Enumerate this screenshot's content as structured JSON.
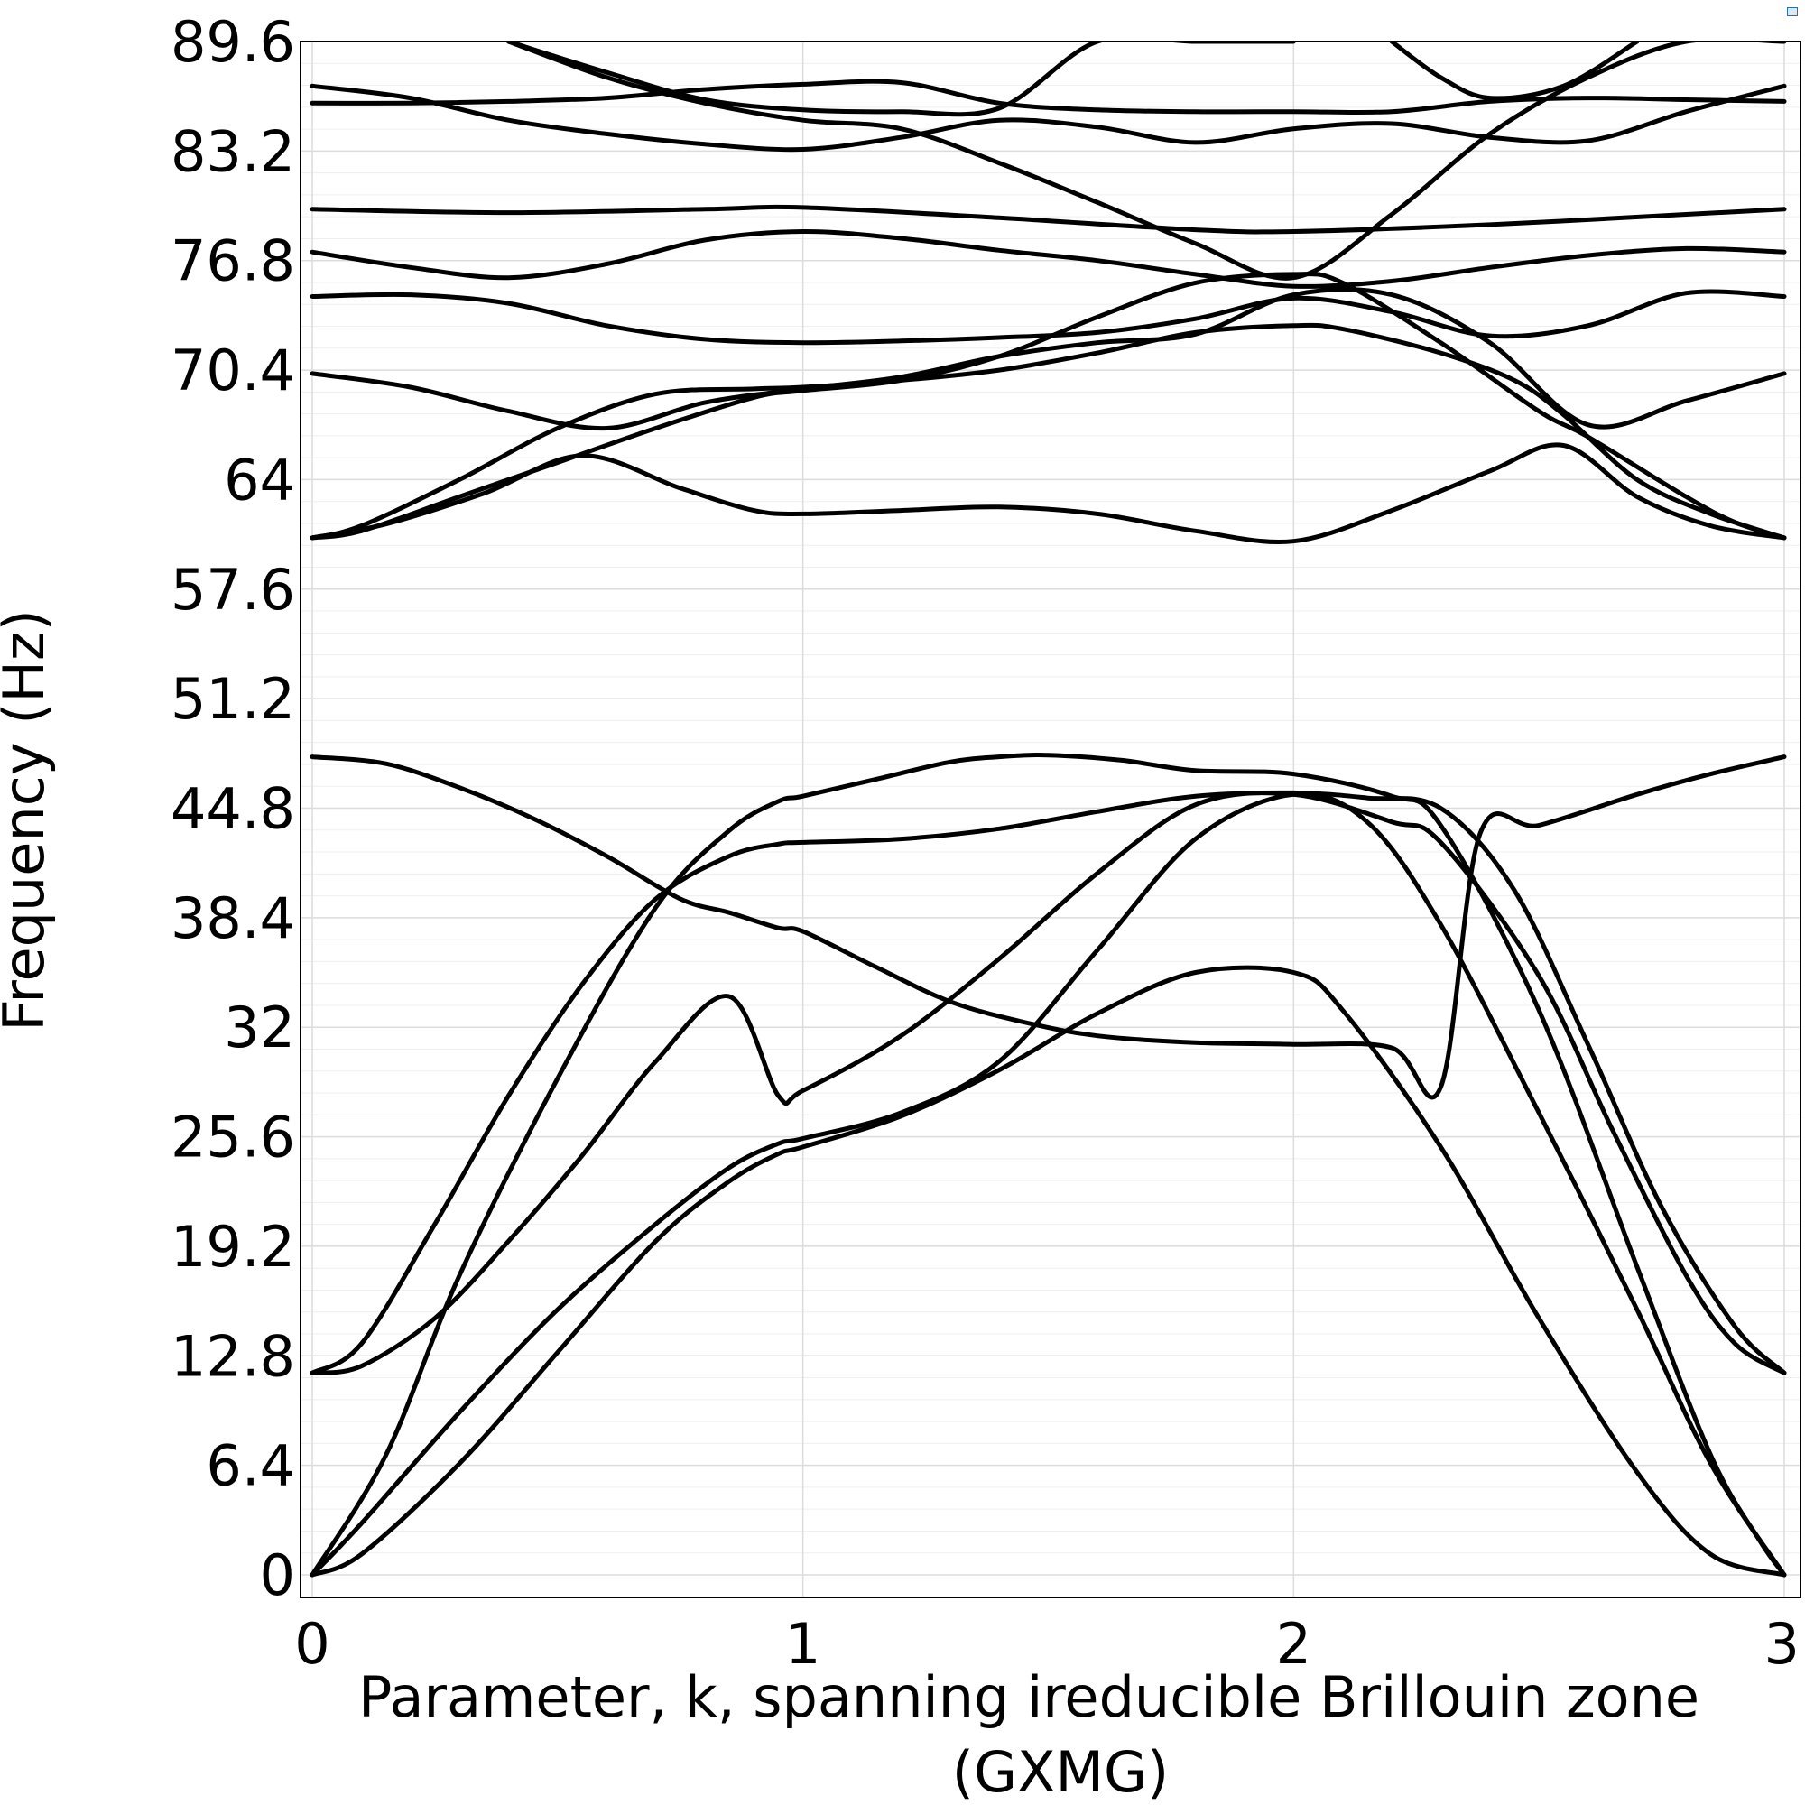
{
  "chart_data": {
    "type": "line",
    "title": "",
    "xlabel_lines": [
      "Parameter, k, spanning ireducible Brillouin zone",
      "(GXMG)"
    ],
    "ylabel": "Frequency (Hz)",
    "xlim": [
      0,
      3
    ],
    "ylim": [
      0,
      89.6
    ],
    "x_ticks": [
      0,
      1,
      2,
      3
    ],
    "x_tick_labels": [
      "0",
      "1",
      "2",
      "3"
    ],
    "y_ticks": [
      0,
      6.4,
      12.8,
      19.2,
      25.6,
      32,
      38.4,
      44.8,
      51.2,
      57.6,
      64,
      70.4,
      76.8,
      83.2,
      89.6
    ],
    "y_tick_labels": [
      "0",
      "6.4",
      "12.8",
      "19.2",
      "25.6",
      "32",
      "38.4",
      "44.8",
      "51.2",
      "57.6",
      "64",
      "70.4",
      "76.8",
      "83.2",
      "89.6"
    ],
    "grid": true,
    "line_color": "#000000",
    "series": [
      {
        "x": [
          0,
          0.1,
          0.3,
          0.5,
          0.7,
          0.85,
          0.95,
          1.0,
          1.2,
          1.4,
          1.6,
          1.8,
          2.0,
          2.1,
          2.3,
          2.5,
          2.7,
          2.85,
          3.0
        ],
        "y": [
          0,
          1.2,
          6.5,
          13.0,
          19.5,
          23.0,
          24.6,
          25.0,
          26.8,
          29.5,
          32.8,
          35.2,
          35.2,
          33.0,
          25.0,
          15.0,
          6.0,
          1.2,
          0
        ]
      },
      {
        "x": [
          0,
          0.1,
          0.3,
          0.5,
          0.7,
          0.85,
          0.95,
          1.0,
          1.2,
          1.4,
          1.6,
          1.8,
          2.0,
          2.15,
          2.3,
          2.5,
          2.7,
          2.85,
          3.0
        ],
        "y": [
          0,
          3.0,
          9.5,
          15.5,
          20.5,
          23.8,
          25.2,
          25.5,
          27.0,
          30.0,
          36.5,
          43.0,
          45.6,
          44.0,
          38.0,
          27.0,
          15.5,
          6.5,
          0
        ]
      },
      {
        "x": [
          0,
          0.15,
          0.3,
          0.5,
          0.7,
          0.85,
          0.95,
          1.0,
          1.15,
          1.3,
          1.4,
          1.5,
          1.65,
          1.8,
          2.0,
          2.2,
          2.3,
          2.5,
          2.7,
          2.85,
          2.95,
          3.0
        ],
        "y": [
          0,
          7.0,
          17.5,
          29.0,
          39.0,
          43.5,
          45.2,
          45.5,
          46.5,
          47.5,
          47.8,
          47.9,
          47.6,
          47.0,
          46.8,
          45.5,
          43.8,
          33.0,
          18.0,
          7.0,
          2.0,
          0
        ]
      },
      {
        "x": [
          0,
          0.1,
          0.25,
          0.4,
          0.55,
          0.7,
          0.85,
          0.95,
          1.0,
          1.2,
          1.4,
          1.6,
          1.8,
          2.0,
          2.2,
          2.3,
          2.5,
          2.65,
          2.8,
          2.9,
          3.0
        ],
        "y": [
          11.8,
          12.2,
          15.0,
          19.5,
          24.5,
          30.0,
          33.8,
          28.0,
          28.3,
          31.5,
          36.0,
          41.0,
          45.0,
          45.6,
          44.0,
          42.8,
          35.0,
          26.0,
          17.5,
          13.5,
          11.8
        ]
      },
      {
        "x": [
          0,
          0.1,
          0.25,
          0.4,
          0.55,
          0.7,
          0.85,
          0.95,
          1.0,
          1.2,
          1.4,
          1.6,
          1.8,
          2.0,
          2.15,
          2.3,
          2.45,
          2.6,
          2.75,
          2.9,
          3.0
        ],
        "y": [
          11.8,
          13.5,
          20.5,
          28.0,
          34.5,
          39.5,
          42.0,
          42.7,
          42.8,
          43.0,
          43.6,
          44.6,
          45.5,
          45.7,
          45.4,
          44.8,
          40.0,
          31.0,
          21.5,
          14.5,
          11.8
        ]
      },
      {
        "x": [
          0,
          0.15,
          0.3,
          0.45,
          0.6,
          0.75,
          0.85,
          0.95,
          1.0,
          1.15,
          1.3,
          1.45,
          1.6,
          1.8,
          2.0,
          2.2,
          2.3,
          2.38,
          2.5,
          2.7,
          2.85,
          3.0
        ],
        "y": [
          47.8,
          47.4,
          46.0,
          44.2,
          42.0,
          39.5,
          38.7,
          37.8,
          37.6,
          35.5,
          33.5,
          32.3,
          31.5,
          31.1,
          31.0,
          30.8,
          28.5,
          43.3,
          43.8,
          45.6,
          46.8,
          47.8
        ]
      },
      {
        "x": [
          0,
          0.1,
          0.3,
          0.5,
          0.7,
          0.9,
          1.0,
          1.2,
          1.4,
          1.6,
          1.8,
          2.0,
          2.1,
          2.3,
          2.5,
          2.6,
          2.8,
          2.9,
          3.0
        ],
        "y": [
          60.6,
          61.0,
          63.0,
          65.0,
          67.0,
          68.8,
          69.2,
          69.8,
          71.2,
          73.5,
          75.5,
          76.0,
          75.5,
          72.0,
          68.0,
          66.5,
          63.0,
          61.5,
          60.6
        ]
      },
      {
        "x": [
          0,
          0.1,
          0.3,
          0.5,
          0.7,
          0.9,
          1.0,
          1.2,
          1.4,
          1.6,
          1.8,
          2.0,
          2.1,
          2.3,
          2.45,
          2.55,
          2.7,
          2.85,
          3.0
        ],
        "y": [
          60.6,
          61.3,
          64.0,
          67.0,
          69.0,
          69.3,
          69.4,
          69.8,
          70.4,
          71.4,
          72.6,
          73.0,
          72.8,
          71.4,
          69.8,
          67.8,
          64.0,
          62.0,
          60.6
        ]
      },
      {
        "x": [
          0,
          0.15,
          0.35,
          0.55,
          0.75,
          0.9,
          1.0,
          1.2,
          1.4,
          1.6,
          1.8,
          2.0,
          2.2,
          2.4,
          2.55,
          2.7,
          2.85,
          3.0
        ],
        "y": [
          60.6,
          61.4,
          63.2,
          65.4,
          63.5,
          62.2,
          62.0,
          62.2,
          62.4,
          62.0,
          61.0,
          60.4,
          62.2,
          64.5,
          66.0,
          63.0,
          61.3,
          60.6
        ]
      },
      {
        "x": [
          0,
          0.2,
          0.4,
          0.6,
          0.8,
          1.0,
          1.2,
          1.4,
          1.6,
          1.8,
          2.0,
          2.2,
          2.4,
          2.6,
          2.8,
          3.0
        ],
        "y": [
          70.2,
          69.4,
          68.0,
          67.0,
          68.5,
          69.3,
          70.0,
          71.2,
          72.0,
          72.5,
          74.8,
          74.8,
          72.0,
          67.2,
          68.6,
          70.2
        ]
      },
      {
        "x": [
          0,
          0.2,
          0.4,
          0.6,
          0.8,
          1.0,
          1.2,
          1.4,
          1.6,
          1.8,
          2.0,
          2.2,
          2.4,
          2.6,
          2.8,
          3.0
        ],
        "y": [
          74.7,
          74.8,
          74.3,
          73.0,
          72.2,
          72.0,
          72.1,
          72.3,
          72.6,
          73.4,
          74.6,
          73.8,
          72.4,
          73.0,
          74.9,
          74.7
        ]
      },
      {
        "x": [
          0,
          0.2,
          0.4,
          0.6,
          0.8,
          1.0,
          1.2,
          1.4,
          1.6,
          1.8,
          2.0,
          2.2,
          2.4,
          2.6,
          2.8,
          3.0
        ],
        "y": [
          77.3,
          76.4,
          75.8,
          76.6,
          78.0,
          78.5,
          78.1,
          77.4,
          76.8,
          76.0,
          75.3,
          75.6,
          76.4,
          77.1,
          77.5,
          77.3
        ]
      },
      {
        "x": [
          0,
          0.4,
          0.8,
          1.0,
          1.4,
          1.8,
          2.0,
          2.4,
          2.8,
          3.0
        ],
        "y": [
          79.8,
          79.6,
          79.8,
          79.9,
          79.3,
          78.6,
          78.5,
          78.9,
          79.5,
          79.8
        ]
      },
      {
        "x": [
          0,
          0.2,
          0.4,
          0.6,
          0.8,
          1.0,
          1.2,
          1.4,
          1.6,
          1.8,
          2.0,
          2.2,
          2.4,
          2.6,
          2.8,
          3.0
        ],
        "y": [
          86.0,
          86.0,
          86.1,
          86.3,
          86.8,
          87.1,
          87.2,
          86.0,
          85.6,
          85.5,
          85.5,
          85.5,
          86.1,
          86.3,
          86.2,
          86.1
        ]
      },
      {
        "x": [
          0,
          0.2,
          0.4,
          0.6,
          0.8,
          1.0,
          1.2,
          1.4,
          1.6,
          1.8,
          2.0,
          2.2,
          2.4,
          2.6,
          2.8,
          3.0
        ],
        "y": [
          87.0,
          86.3,
          85.0,
          84.2,
          83.6,
          83.3,
          84.0,
          85.0,
          84.6,
          83.7,
          84.5,
          84.8,
          84.0,
          83.8,
          85.5,
          87.0
        ]
      },
      {
        "x": [
          0.4,
          0.6,
          0.8,
          1.0,
          1.2,
          1.4,
          1.6,
          1.8,
          2.0,
          2.2,
          2.4,
          2.6,
          2.8,
          3.0
        ],
        "y": [
          89.6,
          87.5,
          86.0,
          85.0,
          84.5,
          82.5,
          80.2,
          77.8,
          75.8,
          79.5,
          84.2,
          87.5,
          89.6,
          89.6
        ]
      },
      {
        "x": [
          0.4,
          0.6,
          0.8,
          1.0,
          1.2,
          1.4,
          1.6,
          1.8,
          2.0
        ],
        "y": [
          89.6,
          87.8,
          86.2,
          85.6,
          85.5,
          85.7,
          89.6,
          89.6,
          89.6
        ]
      },
      {
        "x": [
          2.2,
          2.3,
          2.4,
          2.55,
          2.7
        ],
        "y": [
          89.6,
          87.5,
          86.3,
          87.0,
          89.6
        ]
      }
    ]
  }
}
